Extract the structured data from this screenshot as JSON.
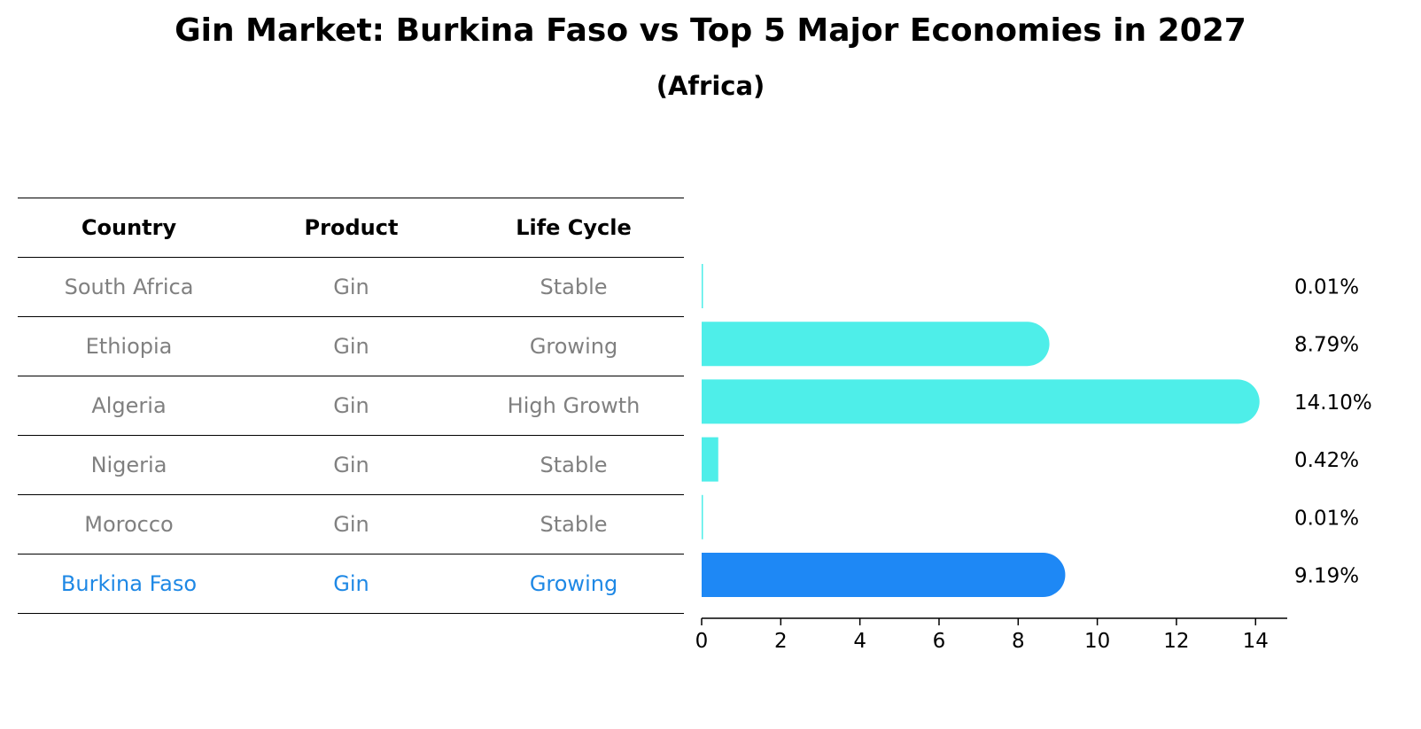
{
  "title": "Gin Market: Burkina Faso vs Top 5 Major Economies in 2027",
  "subtitle": "(Africa)",
  "table": {
    "headers": [
      "Country",
      "Product",
      "Life Cycle"
    ],
    "rows": [
      [
        "South Africa",
        "Gin",
        "Stable"
      ],
      [
        "Ethiopia",
        "Gin",
        "Growing"
      ],
      [
        "Algeria",
        "Gin",
        "High Growth"
      ],
      [
        "Nigeria",
        "Gin",
        "Stable"
      ],
      [
        "Morocco",
        "Gin",
        "Stable"
      ],
      [
        "Burkina Faso",
        "Gin",
        "Growing"
      ]
    ],
    "highlight_row": 5,
    "text_color": "#808080",
    "highlight_color": "#1e88e5"
  },
  "chart_data": {
    "type": "bar",
    "orientation": "horizontal",
    "categories": [
      "South Africa",
      "Ethiopia",
      "Algeria",
      "Nigeria",
      "Morocco",
      "Burkina Faso"
    ],
    "values": [
      0.01,
      8.79,
      14.1,
      0.42,
      0.01,
      9.19
    ],
    "data_labels": [
      "0.01%",
      "8.79%",
      "14.10%",
      "0.42%",
      "0.01%",
      "9.19%"
    ],
    "xlim": [
      0,
      14.8
    ],
    "xticks": [
      0,
      2,
      4,
      6,
      8,
      10,
      12,
      14
    ],
    "bar_color": "#4eeee9",
    "highlight_color": "#1e88f5",
    "highlight_index": 5,
    "grid": false
  }
}
